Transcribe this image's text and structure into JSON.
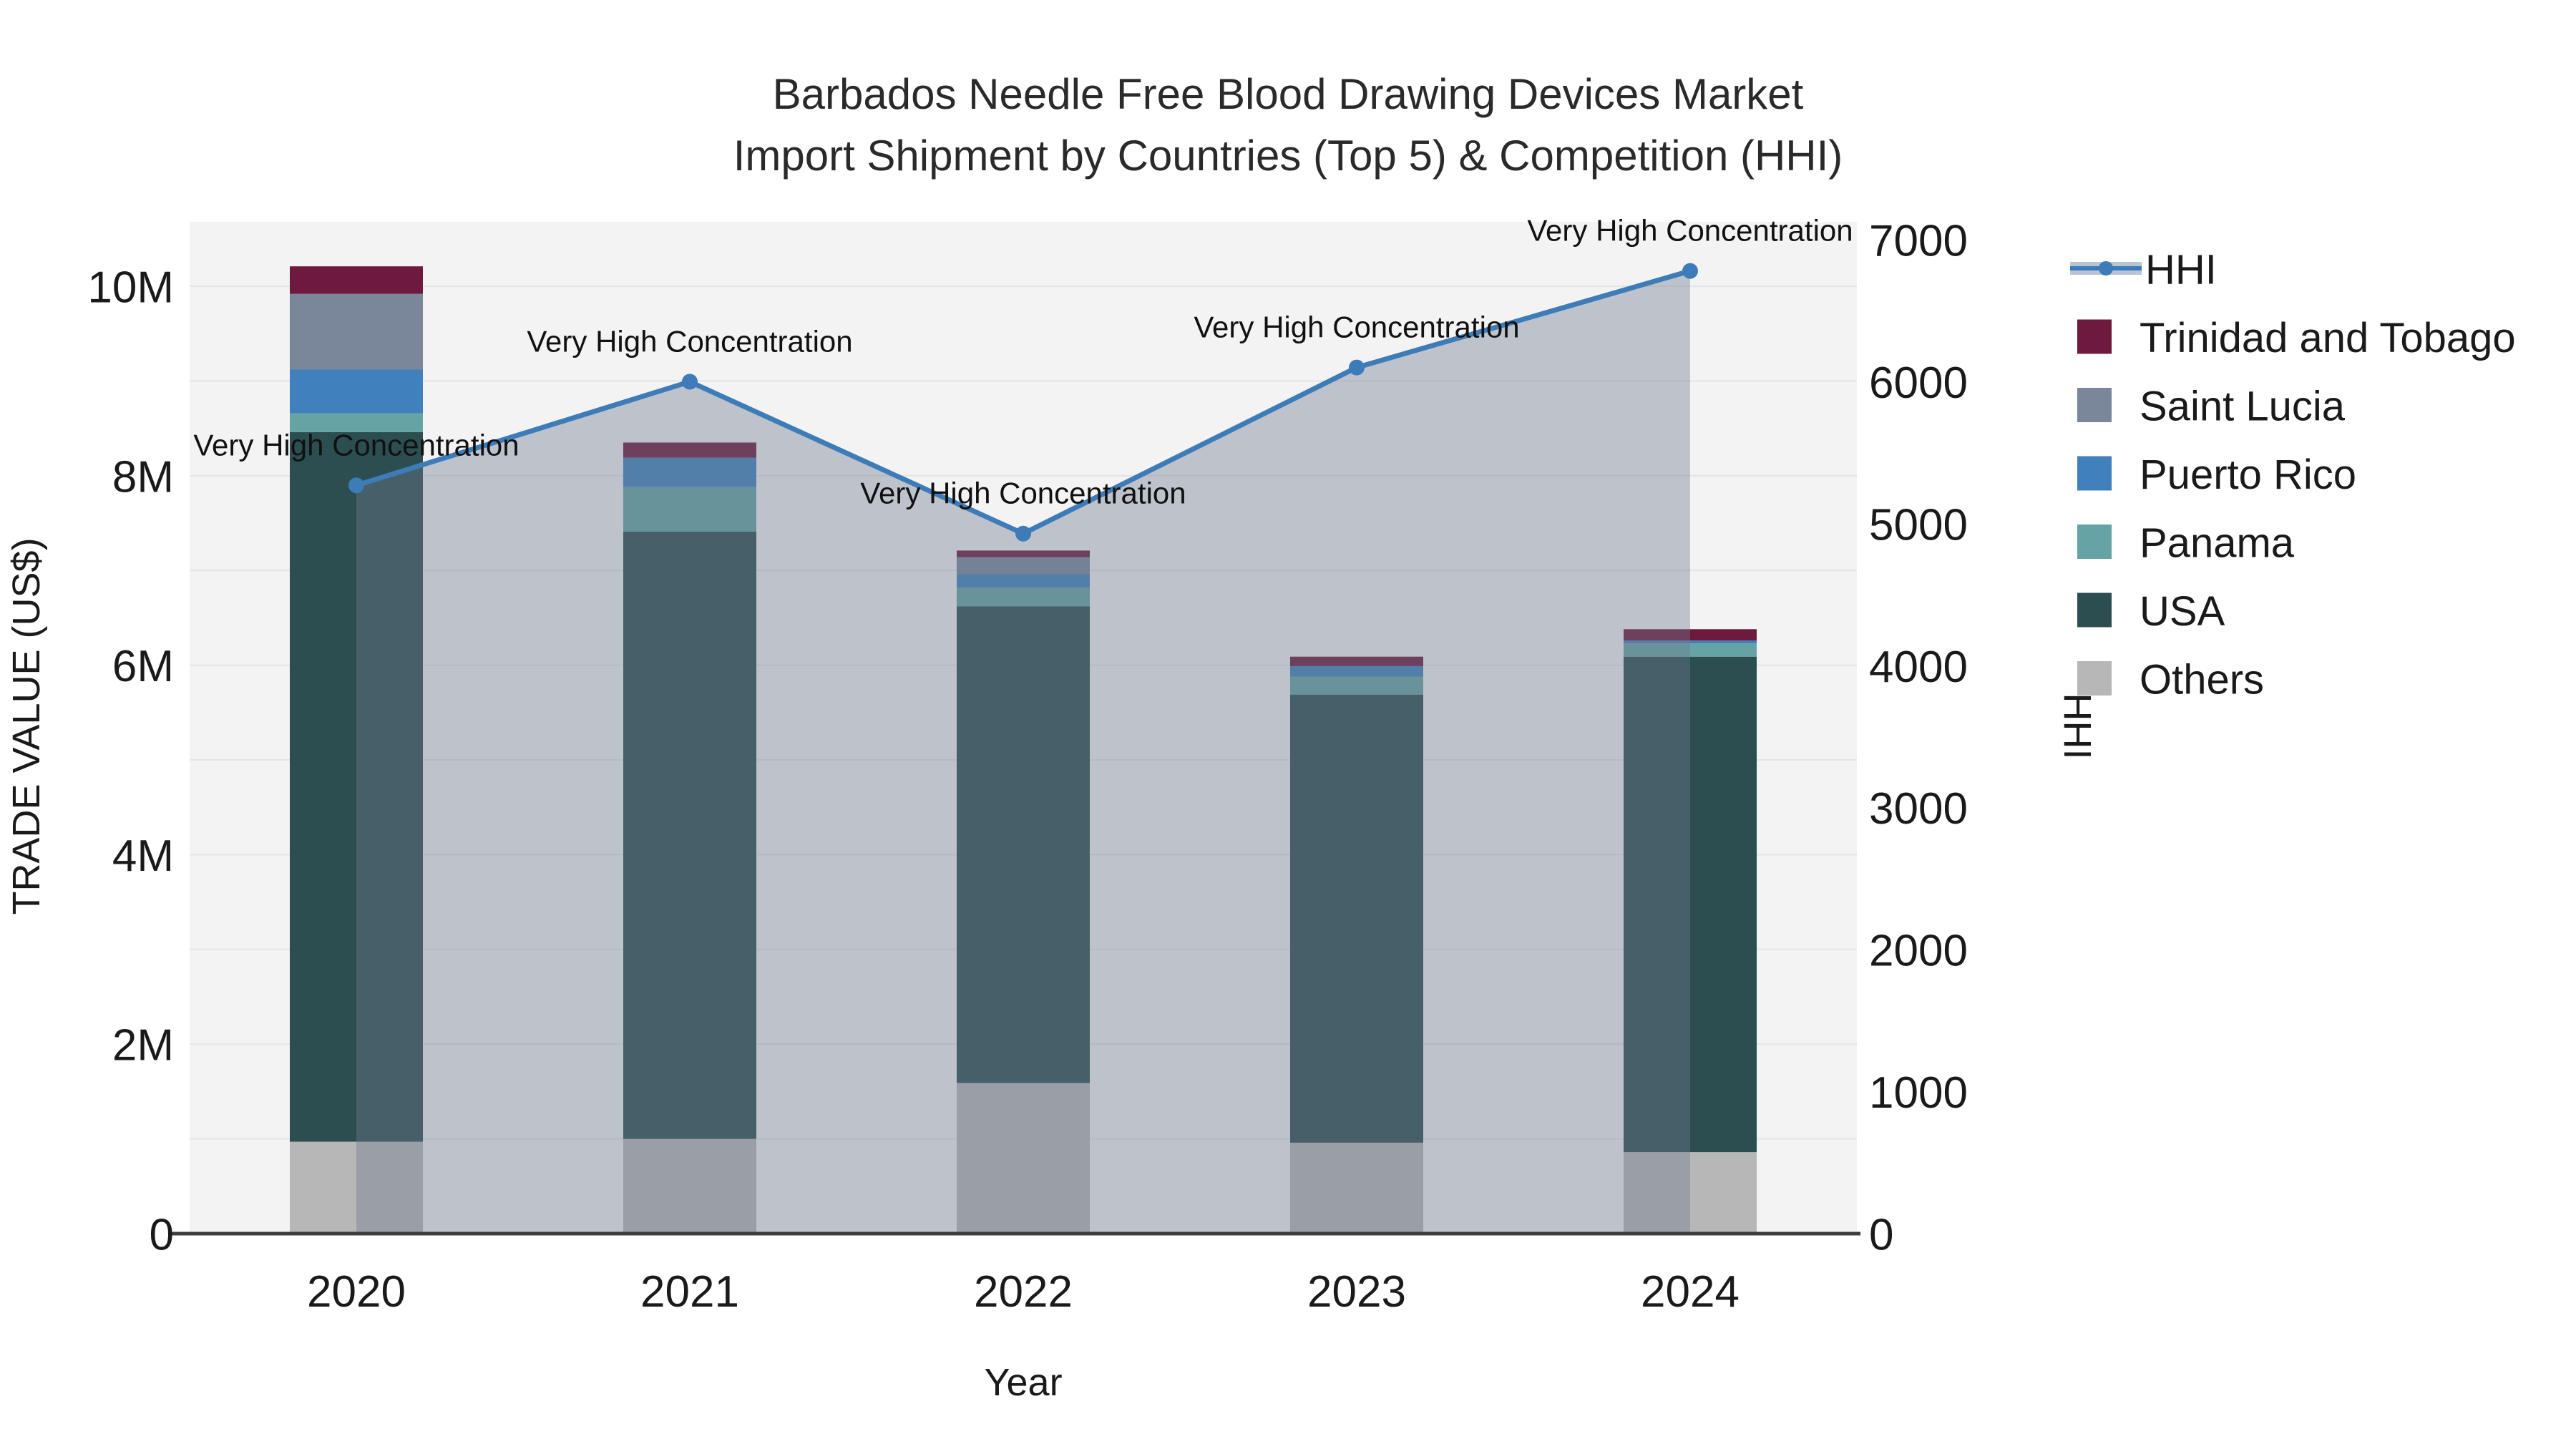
{
  "figure": {
    "title_line1": "Barbados Needle Free Blood Drawing Devices Market",
    "title_line2": "Import Shipment by Countries (Top 5) & Competition (HHI)",
    "x_axis": {
      "title": "Year",
      "ticks": [
        "2020",
        "2021",
        "2022",
        "2023",
        "2024"
      ]
    },
    "y_axis_left": {
      "title": "TRADE VALUE (US$)",
      "ticks": [
        "0",
        "2M",
        "4M",
        "6M",
        "8M",
        "10M"
      ],
      "max_millions": 10,
      "gridline_step_millions": 1
    },
    "y_axis_right": {
      "title": "HHI",
      "ticks": [
        "0",
        "1000",
        "2000",
        "3000",
        "4000",
        "5000",
        "6000",
        "7000"
      ],
      "max": 7000
    },
    "legend": [
      {
        "label": "HHI",
        "type": "line",
        "color": "#3d7cb8",
        "band_color": "#b9c4d6"
      },
      {
        "label": "Trinidad and Tobago",
        "type": "square",
        "color": "#6e1a3e"
      },
      {
        "label": "Saint Lucia",
        "type": "square",
        "color": "#7a8699"
      },
      {
        "label": "Puerto Rico",
        "type": "square",
        "color": "#4080bd"
      },
      {
        "label": "Panama",
        "type": "square",
        "color": "#66a3a4"
      },
      {
        "label": "USA",
        "type": "square",
        "color": "#2c4e51"
      },
      {
        "label": "Others",
        "type": "square",
        "color": "#b7b7b7"
      }
    ]
  },
  "chart_data": {
    "type": "bar",
    "subtype": "stacked-bars-with-line-overlay",
    "categories": [
      "2020",
      "2021",
      "2022",
      "2023",
      "2024"
    ],
    "bar_value_unit": "millions US$",
    "bar_series_stack_order_bottom_to_top": [
      {
        "name": "Others",
        "color": "#b7b7b7",
        "values": [
          0.97,
          1.0,
          1.59,
          0.96,
          0.86
        ]
      },
      {
        "name": "USA",
        "color": "#2c4e51",
        "values": [
          7.49,
          6.41,
          5.03,
          4.73,
          5.23
        ]
      },
      {
        "name": "Panama",
        "color": "#66a3a4",
        "values": [
          0.2,
          0.47,
          0.2,
          0.19,
          0.14
        ]
      },
      {
        "name": "Puerto Rico",
        "color": "#4080bd",
        "values": [
          0.46,
          0.31,
          0.14,
          0.11,
          0.03
        ]
      },
      {
        "name": "Saint Lucia",
        "color": "#7a8699",
        "values": [
          0.8,
          0.0,
          0.18,
          0.0,
          0.0
        ]
      },
      {
        "name": "Trinidad and Tobago",
        "color": "#6e1a3e",
        "values": [
          0.29,
          0.16,
          0.07,
          0.1,
          0.12
        ]
      }
    ],
    "bar_totals_millions": [
      10.21,
      8.35,
      7.21,
      6.09,
      6.38
    ],
    "line_series": {
      "name": "HHI",
      "axis": "right",
      "color": "#3d7cb8",
      "area_fill_color": "rgba(110,122,143,0.40)",
      "values": [
        5270,
        6000,
        4930,
        6100,
        6780
      ]
    },
    "annotations": [
      {
        "x": "2020",
        "text": "Very High Concentration"
      },
      {
        "x": "2021",
        "text": "Very High Concentration"
      },
      {
        "x": "2022",
        "text": "Very High Concentration"
      },
      {
        "x": "2023",
        "text": "Very High Concentration"
      },
      {
        "x": "2024",
        "text": "Very High Concentration"
      }
    ],
    "title": "Barbados Needle Free Blood Drawing Devices Market Import Shipment by Countries (Top 5) & Competition (HHI)",
    "xlabel": "Year",
    "ylabel_left": "TRADE VALUE (US$)",
    "ylabel_right": "HHI",
    "ylim_left_millions": [
      0,
      10
    ],
    "ylim_right": [
      0,
      7000
    ],
    "grid": "horizontal",
    "legend_position": "right"
  },
  "style": {
    "plot_bg": "#f3f3f3",
    "page_bg": "#ffffff",
    "gridline_color": "#e4e4e4",
    "axis_line_color": "#3d3d3d",
    "text_color": "#1a1a1a"
  }
}
